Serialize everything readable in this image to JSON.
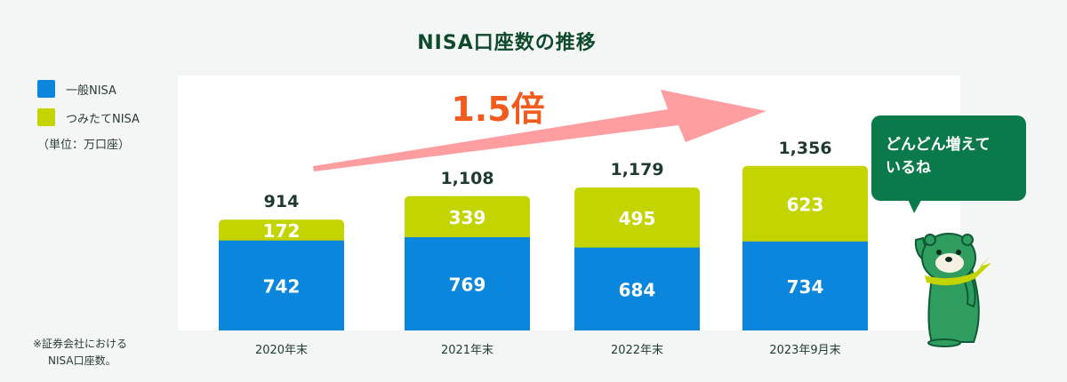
{
  "title": "NISA口座数の推移",
  "legend": [
    {
      "label": "一般NISA",
      "color": "#0a86dd"
    },
    {
      "label": "つみたてNISA",
      "color": "#c4d400"
    }
  ],
  "unit": "（単位：万口座）",
  "note": [
    "※証券会社における",
    "NISA口座数。"
  ],
  "growth_label": "1.5倍",
  "speech_bubble": [
    "どんどん増えて",
    "いるね"
  ],
  "colors": {
    "general": "#0a86dd",
    "tsumitate": "#c4d400",
    "arrow": "#ff9ea0",
    "growth_text": "#f25a1e",
    "bubble": "#0b7a4b"
  },
  "chart_data": {
    "type": "bar",
    "stacked": true,
    "categories": [
      "2020年末",
      "2021年末",
      "2022年末",
      "2023年9月末"
    ],
    "series": [
      {
        "name": "一般NISA",
        "values": [
          742,
          769,
          684,
          734
        ]
      },
      {
        "name": "つみたてNISA",
        "values": [
          172,
          339,
          495,
          623
        ]
      }
    ],
    "totals": [
      "914",
      "1,108",
      "1,179",
      "1,356"
    ],
    "title": "NISA口座数の推移",
    "xlabel": "",
    "ylabel": "",
    "ylim": [
      0,
      1400
    ]
  }
}
